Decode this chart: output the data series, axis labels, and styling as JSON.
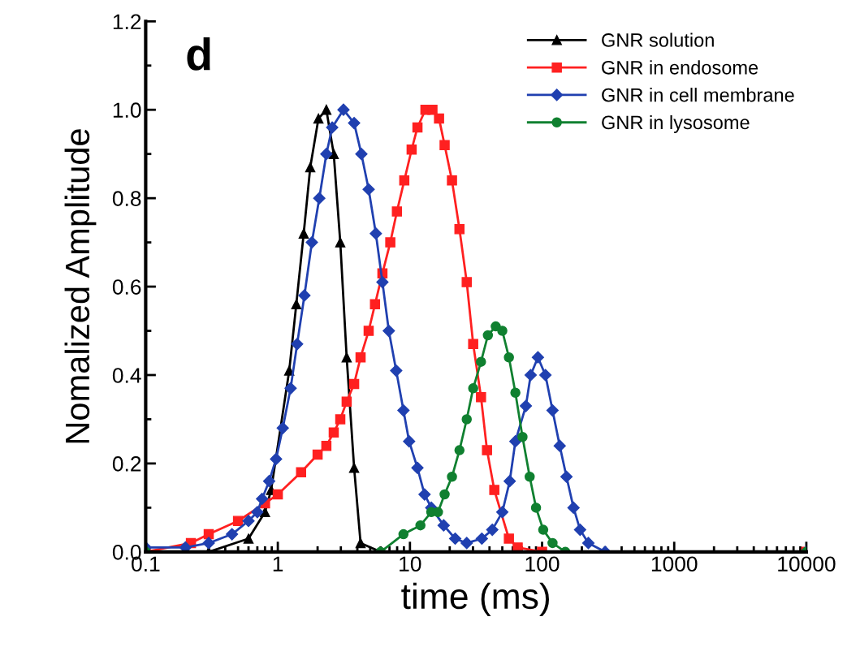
{
  "chart_data": {
    "type": "line",
    "xlabel": "time (ms)",
    "ylabel": "Nomalized Amplitude",
    "log": "x",
    "grid": false,
    "legend": "top right",
    "annotations": [
      "d"
    ],
    "xlim": [
      0.1,
      10000
    ],
    "xticks": [
      0.1,
      1,
      10,
      100,
      1000,
      10000
    ],
    "ylim": [
      0,
      1.2
    ],
    "yticks": [
      {
        "value": 0,
        "label": "0.0"
      },
      {
        "value": 0.2,
        "label": "0.2"
      },
      {
        "value": 0.4,
        "label": "0.4"
      },
      {
        "value": 0.6,
        "label": "0.6"
      },
      {
        "value": 0.8,
        "label": "0.8"
      },
      {
        "value": 1.0,
        "label": "1.0"
      },
      {
        "value": 1.2,
        "label": "1.2"
      }
    ],
    "series": [
      {
        "name": "GNR solution",
        "color": "#000000",
        "marker": "triangle",
        "x": [
          0.1,
          0.3,
          0.6,
          0.8,
          0.89,
          1.22,
          1.38,
          1.57,
          1.76,
          2.03,
          2.33,
          2.65,
          2.97,
          3.32,
          3.78,
          4.23,
          6,
          10000
        ],
        "values": [
          0,
          0,
          0.03,
          0.09,
          0.14,
          0.41,
          0.56,
          0.72,
          0.87,
          0.98,
          1.0,
          0.9,
          0.7,
          0.44,
          0.19,
          0.02,
          0,
          0
        ]
      },
      {
        "name": "GNR in endosome",
        "color": "#ff2020",
        "marker": "square",
        "x": [
          0.1,
          0.22,
          0.3,
          0.5,
          0.8,
          1.0,
          1.5,
          2.0,
          2.33,
          2.65,
          2.97,
          3.32,
          3.78,
          4.23,
          4.87,
          5.44,
          6.19,
          7.1,
          7.97,
          9.06,
          10.3,
          11.4,
          13.1,
          14.8,
          16.6,
          18.3,
          20.8,
          23.7,
          26.9,
          30.1,
          34.5,
          38.3,
          43.5,
          56.1,
          65.4,
          100,
          10000
        ],
        "values": [
          0,
          0.02,
          0.04,
          0.07,
          0.11,
          0.13,
          0.18,
          0.22,
          0.24,
          0.27,
          0.3,
          0.34,
          0.38,
          0.44,
          0.5,
          0.56,
          0.63,
          0.7,
          0.77,
          0.84,
          0.91,
          0.96,
          1.0,
          1.0,
          0.98,
          0.92,
          0.84,
          0.73,
          0.61,
          0.47,
          0.35,
          0.23,
          0.14,
          0.03,
          0.01,
          0,
          0
        ]
      },
      {
        "name": "GNR in cell membrane",
        "color": "#2040b0",
        "marker": "diamond",
        "x": [
          0.1,
          0.2,
          0.3,
          0.45,
          0.6,
          0.7,
          0.76,
          0.86,
          0.97,
          1.09,
          1.25,
          1.4,
          1.59,
          1.81,
          2.06,
          2.33,
          2.58,
          3.14,
          3.78,
          4.29,
          4.87,
          5.52,
          6.19,
          6.92,
          7.87,
          8.93,
          9.86,
          11.4,
          12.9,
          14.5,
          18,
          22,
          26.9,
          35,
          42,
          50,
          56.9,
          62.8,
          75.4,
          82,
          93,
          106,
          120,
          136,
          153,
          173,
          194,
          224,
          300,
          10000
        ],
        "values": [
          0.01,
          0.01,
          0.02,
          0.04,
          0.07,
          0.09,
          0.12,
          0.16,
          0.21,
          0.28,
          0.37,
          0.47,
          0.58,
          0.7,
          0.8,
          0.9,
          0.96,
          1.0,
          0.97,
          0.9,
          0.82,
          0.72,
          0.61,
          0.5,
          0.41,
          0.32,
          0.25,
          0.19,
          0.13,
          0.1,
          0.06,
          0.03,
          0.02,
          0.03,
          0.05,
          0.09,
          0.16,
          0.25,
          0.33,
          0.4,
          0.44,
          0.4,
          0.32,
          0.24,
          0.17,
          0.1,
          0.05,
          0.02,
          0,
          0
        ]
      },
      {
        "name": "GNR in lysosome",
        "color": "#108030",
        "marker": "circle",
        "x": [
          0.1,
          6,
          8.93,
          12,
          14.5,
          16.3,
          18.3,
          20.8,
          23.7,
          26.9,
          30.1,
          34.5,
          38.9,
          44.6,
          50,
          56.1,
          62.8,
          71.1,
          80.6,
          90,
          102,
          120,
          150,
          10000
        ],
        "values": [
          0,
          0,
          0.04,
          0.06,
          0.09,
          0.09,
          0.13,
          0.17,
          0.23,
          0.3,
          0.37,
          0.43,
          0.49,
          0.51,
          0.5,
          0.44,
          0.36,
          0.26,
          0.17,
          0.1,
          0.05,
          0.02,
          0,
          0
        ]
      }
    ]
  }
}
